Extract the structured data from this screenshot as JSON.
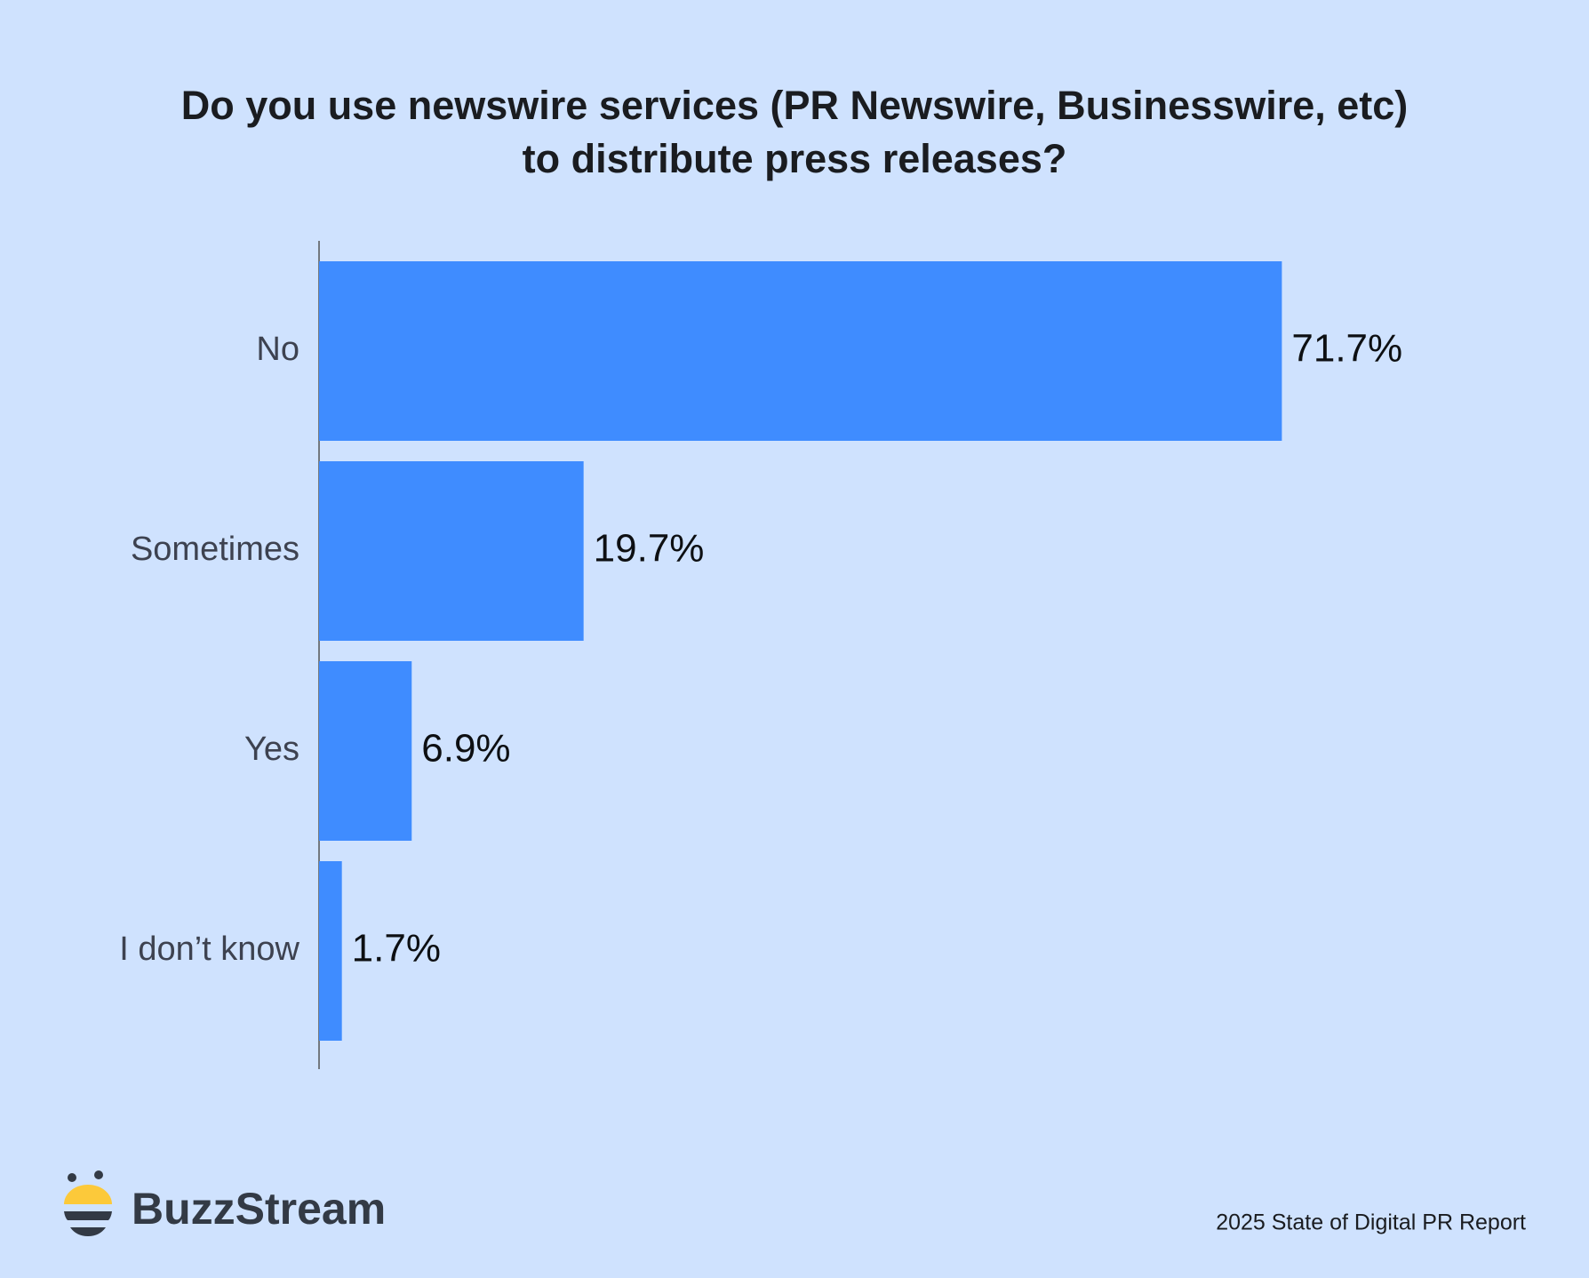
{
  "chart_data": {
    "type": "hbar",
    "title": [
      "Do you use newswire services (PR Newswire, Businesswire, etc)",
      "to distribute press releases?"
    ],
    "categories": [
      "No",
      "Sometimes",
      "Yes",
      "I don’t know"
    ],
    "values": [
      71.7,
      19.7,
      6.9,
      1.7
    ],
    "value_labels": [
      "71.7%",
      "19.7%",
      "6.9%",
      "1.7%"
    ],
    "color": "#3f8cff"
  },
  "brand": "BuzzStream",
  "source": "2025 State of Digital PR Report"
}
